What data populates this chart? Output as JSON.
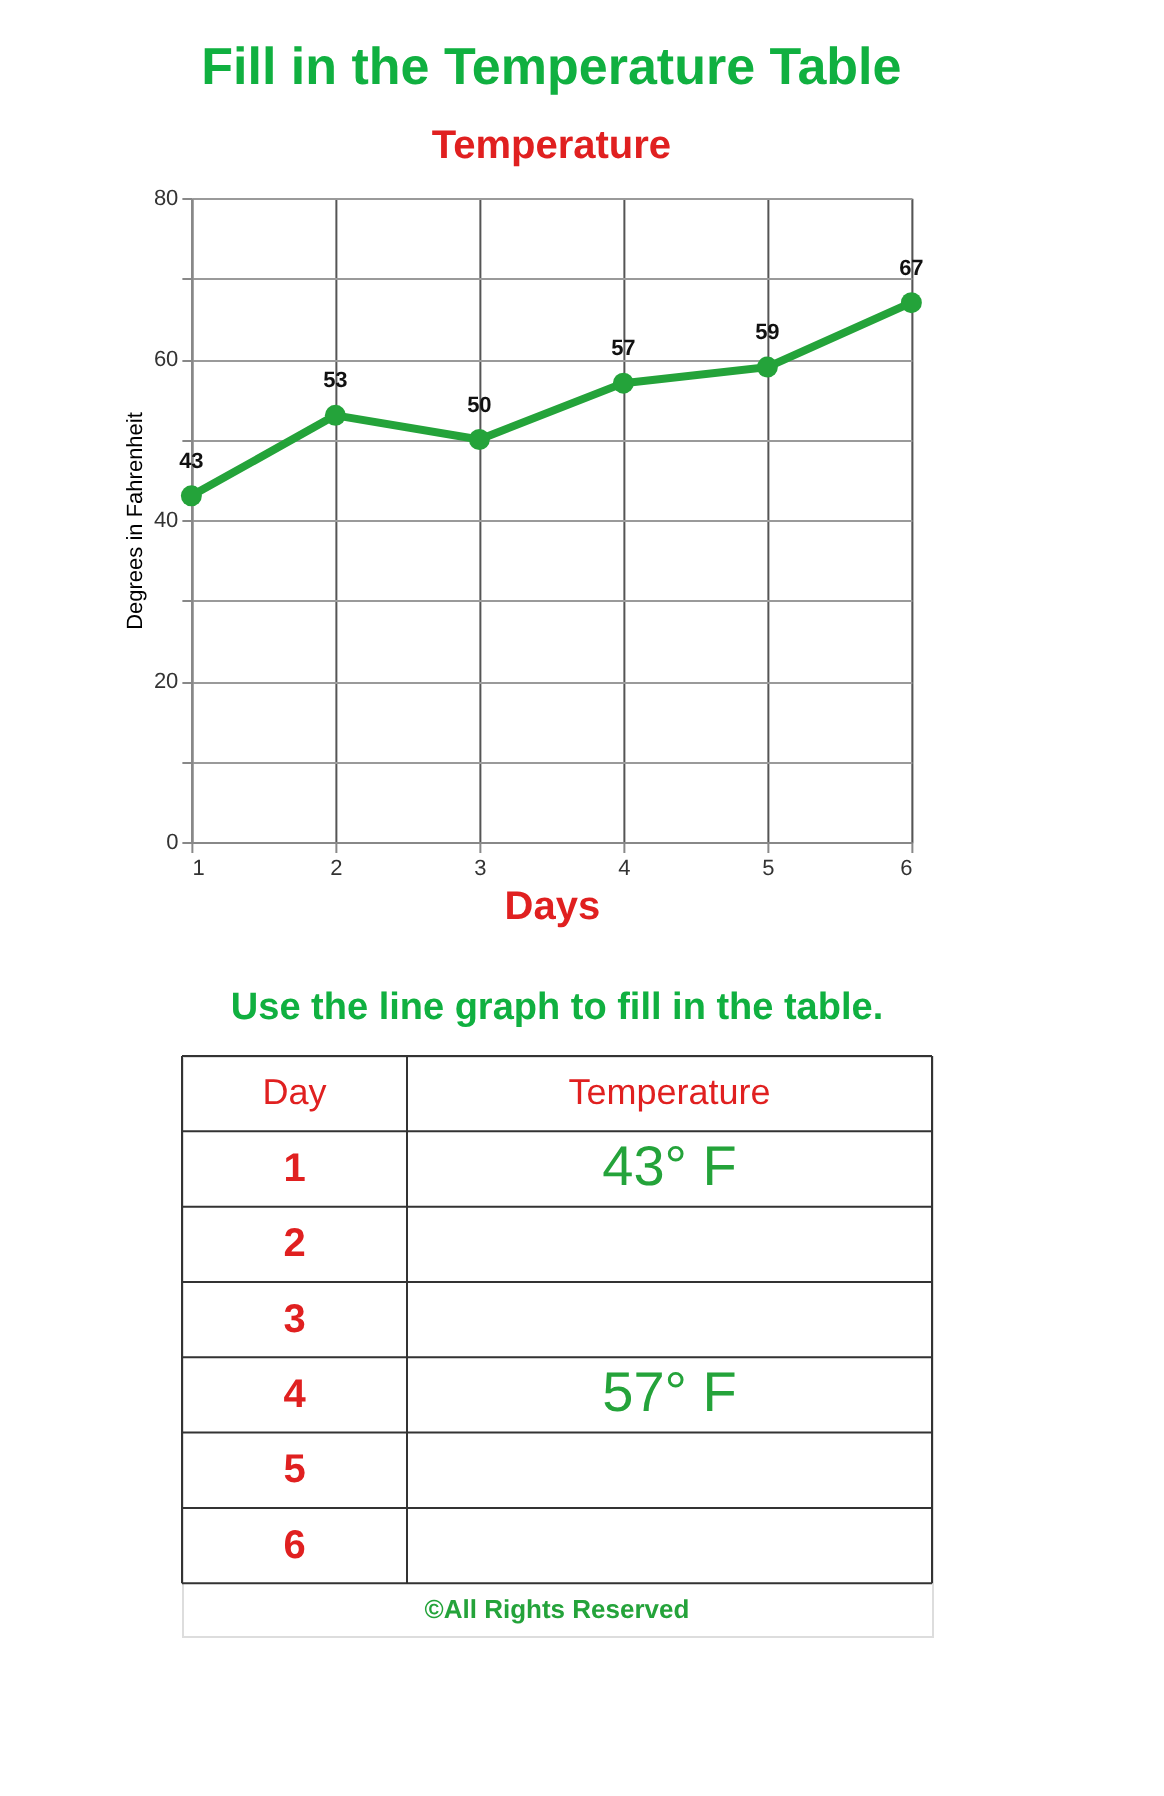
{
  "chart_data": {
    "type": "line",
    "title": "Fill in the Temperature Table",
    "subtitle": "Temperature",
    "xlabel": "Days",
    "ylabel": "Degrees in Fahrenheit",
    "x": [
      1,
      2,
      3,
      4,
      5,
      6
    ],
    "series": [
      {
        "color": "#24a33a",
        "values": [
          43,
          53,
          50,
          57,
          59,
          67
        ]
      }
    ],
    "xlim": [
      1,
      6
    ],
    "xticks": [
      1,
      2,
      3,
      4,
      5,
      6
    ],
    "ylim": [
      0,
      80
    ],
    "yticks": [
      0,
      {
        "value": 10,
        "label": null
      },
      20,
      {
        "value": 30,
        "label": null
      },
      40,
      {
        "value": 50,
        "label": null
      },
      60,
      {
        "value": 70,
        "label": null
      },
      80
    ],
    "grid": true,
    "marker": "circle",
    "line_style": "solid",
    "data_labels": true,
    "annotations": [
      "Use the line graph to fill in the table.",
      "Day",
      "Temperature",
      "1",
      "2",
      "3",
      "4",
      "5",
      "6",
      "43° F",
      "57° F",
      "©All Rights Reserved"
    ]
  }
}
